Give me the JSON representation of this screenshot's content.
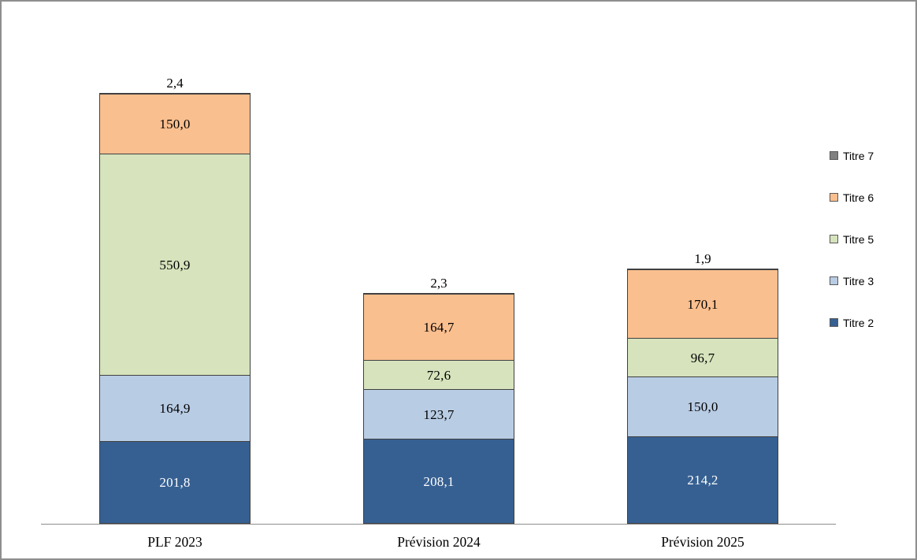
{
  "chart_data": {
    "type": "bar",
    "stacked": true,
    "title": "",
    "xlabel": "",
    "ylabel": "",
    "categories": [
      "PLF 2023",
      "Prévision 2024",
      "Prévision 2025"
    ],
    "series": [
      {
        "name": "Titre 2",
        "color": "#366092",
        "label_color": "#ffffff",
        "values": [
          201.8,
          208.1,
          214.2
        ]
      },
      {
        "name": "Titre 3",
        "color": "#b8cce4",
        "label_color": "#000000",
        "values": [
          164.9,
          123.7,
          150.0
        ]
      },
      {
        "name": "Titre 5",
        "color": "#d6e3bc",
        "label_color": "#000000",
        "values": [
          550.9,
          72.6,
          96.7
        ]
      },
      {
        "name": "Titre 6",
        "color": "#fabf8f",
        "label_color": "#000000",
        "values": [
          150.0,
          164.7,
          170.1
        ]
      },
      {
        "name": "Titre 7",
        "color": "#808080",
        "label_color": "#000000",
        "values": [
          2.4,
          2.3,
          1.9
        ],
        "label_outside": true
      }
    ],
    "data_labels": {
      "format": "decimal-comma-one-digit",
      "shown": [
        [
          "201,8",
          "164,9",
          "550,9",
          "150,0",
          "2,4"
        ],
        [
          "208,1",
          "123,7",
          "72,6",
          "164,7",
          "2,3"
        ],
        [
          "214,2",
          "150,0",
          "96,7",
          "170,1",
          "1,9"
        ]
      ]
    },
    "legend": {
      "position": "right",
      "items": [
        {
          "label": "Titre 7",
          "color": "#808080"
        },
        {
          "label": "Titre 6",
          "color": "#fabf8f"
        },
        {
          "label": "Titre 5",
          "color": "#d6e3bc"
        },
        {
          "label": "Titre 3",
          "color": "#b8cce4"
        },
        {
          "label": "Titre 2",
          "color": "#366092"
        }
      ]
    },
    "axes": {
      "y_axis_visible": false,
      "x_axis_visible": true,
      "grid": false
    },
    "ylim": [
      0,
      1090
    ],
    "segment_border_color": "#404040",
    "axis_line_color": "#8c8c8c",
    "frame_border_color": "#8e8e8e"
  }
}
